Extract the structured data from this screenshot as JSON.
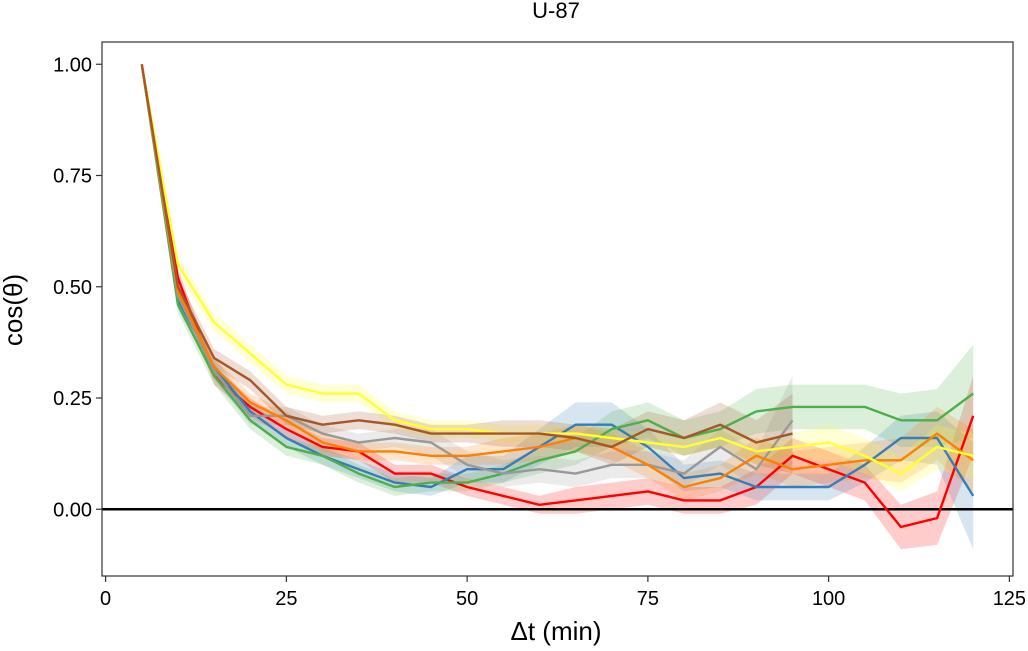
{
  "chart_data": {
    "type": "line",
    "title": "U-87",
    "xlabel": "Δt (min)",
    "ylabel": "cos(θ)",
    "xlim": [
      -0.5,
      125.5
    ],
    "ylim": [
      -0.15,
      1.05
    ],
    "x_ticks": [
      0,
      25,
      50,
      75,
      100,
      125
    ],
    "x_tick_labels": [
      "0",
      "25",
      "50",
      "75",
      "100",
      "125"
    ],
    "y_ticks": [
      0.0,
      0.25,
      0.5,
      0.75,
      1.0
    ],
    "y_tick_labels": [
      "0.00",
      "0.25",
      "0.50",
      "0.75",
      "1.00"
    ],
    "reference_line_y": 0,
    "grid": false,
    "legend": "none",
    "band_opacity": 0.2,
    "series": [
      {
        "color": "#ff0000",
        "x": [
          5,
          10,
          15,
          20,
          25,
          30,
          35,
          40,
          45,
          50,
          55,
          60,
          65,
          70,
          75,
          80,
          85,
          90,
          95,
          100,
          105,
          110,
          115,
          120
        ],
        "y": [
          1.0,
          0.52,
          0.3,
          0.23,
          0.18,
          0.14,
          0.13,
          0.08,
          0.08,
          0.05,
          0.03,
          0.01,
          0.02,
          0.03,
          0.04,
          0.02,
          0.02,
          0.05,
          0.12,
          0.09,
          0.06,
          -0.04,
          -0.02,
          0.21
        ],
        "lo": [
          1.0,
          0.5,
          0.28,
          0.21,
          0.16,
          0.12,
          0.11,
          0.06,
          0.06,
          0.03,
          0.01,
          -0.01,
          -0.01,
          0.0,
          0.01,
          -0.01,
          -0.01,
          0.01,
          0.08,
          0.05,
          0.02,
          -0.09,
          -0.08,
          0.12
        ],
        "hi": [
          1.0,
          0.54,
          0.32,
          0.25,
          0.2,
          0.16,
          0.15,
          0.1,
          0.1,
          0.07,
          0.05,
          0.03,
          0.05,
          0.06,
          0.07,
          0.05,
          0.05,
          0.09,
          0.16,
          0.13,
          0.1,
          0.01,
          0.04,
          0.3
        ]
      },
      {
        "color": "#377eb8",
        "x": [
          5,
          10,
          15,
          20,
          25,
          30,
          35,
          40,
          45,
          50,
          55,
          60,
          65,
          70,
          75,
          80,
          85,
          90,
          95,
          100,
          105,
          110,
          115,
          120
        ],
        "y": [
          1.0,
          0.47,
          0.32,
          0.22,
          0.16,
          0.12,
          0.09,
          0.06,
          0.05,
          0.09,
          0.09,
          0.14,
          0.19,
          0.19,
          0.14,
          0.07,
          0.08,
          0.05,
          0.05,
          0.05,
          0.1,
          0.16,
          0.16,
          0.03
        ],
        "lo": [
          1.0,
          0.45,
          0.3,
          0.2,
          0.14,
          0.1,
          0.07,
          0.04,
          0.03,
          0.06,
          0.06,
          0.1,
          0.14,
          0.14,
          0.1,
          0.04,
          0.05,
          0.02,
          0.02,
          0.02,
          0.06,
          0.11,
          0.1,
          -0.09
        ],
        "hi": [
          1.0,
          0.49,
          0.34,
          0.24,
          0.18,
          0.14,
          0.11,
          0.08,
          0.07,
          0.12,
          0.12,
          0.18,
          0.24,
          0.24,
          0.18,
          0.1,
          0.11,
          0.08,
          0.08,
          0.08,
          0.14,
          0.21,
          0.22,
          0.15
        ]
      },
      {
        "color": "#4daf4a",
        "x": [
          5,
          10,
          15,
          20,
          25,
          30,
          35,
          40,
          45,
          50,
          55,
          60,
          65,
          70,
          75,
          80,
          85,
          90,
          95,
          100,
          105,
          110,
          115,
          120
        ],
        "y": [
          1.0,
          0.46,
          0.3,
          0.2,
          0.14,
          0.12,
          0.08,
          0.05,
          0.06,
          0.06,
          0.08,
          0.11,
          0.13,
          0.18,
          0.2,
          0.16,
          0.18,
          0.22,
          0.23,
          0.23,
          0.23,
          0.2,
          0.2,
          0.26
        ],
        "lo": [
          1.0,
          0.44,
          0.28,
          0.18,
          0.12,
          0.1,
          0.06,
          0.03,
          0.04,
          0.04,
          0.06,
          0.08,
          0.1,
          0.14,
          0.16,
          0.12,
          0.14,
          0.17,
          0.18,
          0.18,
          0.18,
          0.14,
          0.14,
          0.16
        ],
        "hi": [
          1.0,
          0.48,
          0.32,
          0.22,
          0.16,
          0.14,
          0.1,
          0.07,
          0.08,
          0.08,
          0.1,
          0.14,
          0.16,
          0.22,
          0.24,
          0.2,
          0.22,
          0.27,
          0.28,
          0.28,
          0.28,
          0.26,
          0.27,
          0.37
        ]
      },
      {
        "color": "#999999",
        "x": [
          5,
          10,
          15,
          20,
          25,
          30,
          35,
          40,
          45,
          50,
          55,
          60,
          65,
          70,
          75,
          80,
          85,
          90,
          95
        ],
        "y": [
          1.0,
          0.48,
          0.31,
          0.21,
          0.21,
          0.17,
          0.15,
          0.16,
          0.15,
          0.1,
          0.08,
          0.09,
          0.08,
          0.1,
          0.1,
          0.08,
          0.14,
          0.09,
          0.2
        ],
        "lo": [
          1.0,
          0.46,
          0.29,
          0.19,
          0.19,
          0.15,
          0.13,
          0.14,
          0.12,
          0.07,
          0.05,
          0.06,
          0.05,
          0.07,
          0.07,
          0.05,
          0.1,
          0.05,
          0.1
        ],
        "hi": [
          1.0,
          0.5,
          0.33,
          0.23,
          0.23,
          0.19,
          0.17,
          0.18,
          0.18,
          0.13,
          0.11,
          0.12,
          0.11,
          0.13,
          0.13,
          0.11,
          0.18,
          0.13,
          0.3
        ]
      },
      {
        "color": "#ff7f00",
        "x": [
          5,
          10,
          15,
          20,
          25,
          30,
          35,
          40,
          45,
          50,
          55,
          60,
          65,
          70,
          75,
          80,
          85,
          90,
          95,
          100,
          105,
          110,
          115,
          120
        ],
        "y": [
          1.0,
          0.49,
          0.32,
          0.24,
          0.2,
          0.15,
          0.13,
          0.13,
          0.12,
          0.12,
          0.13,
          0.14,
          0.16,
          0.14,
          0.1,
          0.05,
          0.07,
          0.12,
          0.09,
          0.1,
          0.11,
          0.11,
          0.17,
          0.11
        ],
        "lo": [
          1.0,
          0.47,
          0.3,
          0.22,
          0.18,
          0.13,
          0.11,
          0.11,
          0.1,
          0.1,
          0.1,
          0.11,
          0.13,
          0.11,
          0.07,
          0.02,
          0.04,
          0.08,
          0.05,
          0.06,
          0.07,
          0.06,
          0.11,
          0.04
        ],
        "hi": [
          1.0,
          0.51,
          0.34,
          0.26,
          0.22,
          0.17,
          0.15,
          0.15,
          0.14,
          0.14,
          0.16,
          0.17,
          0.19,
          0.17,
          0.13,
          0.08,
          0.1,
          0.16,
          0.13,
          0.14,
          0.15,
          0.16,
          0.23,
          0.18
        ]
      },
      {
        "color": "#ffff33",
        "x": [
          5,
          10,
          15,
          20,
          25,
          30,
          35,
          40,
          45,
          50,
          55,
          60,
          65,
          70,
          75,
          80,
          85,
          90,
          95,
          100,
          105,
          110,
          115,
          120
        ],
        "y": [
          1.0,
          0.55,
          0.42,
          0.35,
          0.28,
          0.26,
          0.26,
          0.2,
          0.18,
          0.18,
          0.17,
          0.17,
          0.17,
          0.16,
          0.15,
          0.14,
          0.16,
          0.13,
          0.14,
          0.15,
          0.12,
          0.08,
          0.14,
          0.12
        ],
        "lo": [
          1.0,
          0.53,
          0.4,
          0.33,
          0.26,
          0.24,
          0.24,
          0.18,
          0.16,
          0.16,
          0.15,
          0.15,
          0.15,
          0.14,
          0.13,
          0.12,
          0.14,
          0.1,
          0.11,
          0.11,
          0.08,
          0.04,
          0.09,
          0.07
        ],
        "hi": [
          1.0,
          0.57,
          0.44,
          0.37,
          0.3,
          0.28,
          0.28,
          0.22,
          0.2,
          0.2,
          0.19,
          0.19,
          0.19,
          0.18,
          0.17,
          0.16,
          0.18,
          0.16,
          0.17,
          0.19,
          0.16,
          0.12,
          0.19,
          0.17
        ]
      },
      {
        "color": "#a65628",
        "x": [
          5,
          10,
          15,
          20,
          25,
          30,
          35,
          40,
          45,
          50,
          55,
          60,
          65,
          70,
          75,
          80,
          85,
          90,
          95
        ],
        "y": [
          1.0,
          0.5,
          0.34,
          0.29,
          0.21,
          0.19,
          0.2,
          0.19,
          0.17,
          0.17,
          0.17,
          0.17,
          0.16,
          0.14,
          0.18,
          0.16,
          0.19,
          0.15,
          0.17
        ],
        "lo": [
          1.0,
          0.48,
          0.32,
          0.27,
          0.19,
          0.17,
          0.18,
          0.17,
          0.15,
          0.15,
          0.14,
          0.14,
          0.13,
          0.1,
          0.14,
          0.12,
          0.14,
          0.1,
          0.08
        ],
        "hi": [
          1.0,
          0.52,
          0.36,
          0.31,
          0.23,
          0.21,
          0.22,
          0.21,
          0.19,
          0.19,
          0.2,
          0.2,
          0.19,
          0.18,
          0.22,
          0.2,
          0.24,
          0.2,
          0.26
        ]
      }
    ]
  }
}
